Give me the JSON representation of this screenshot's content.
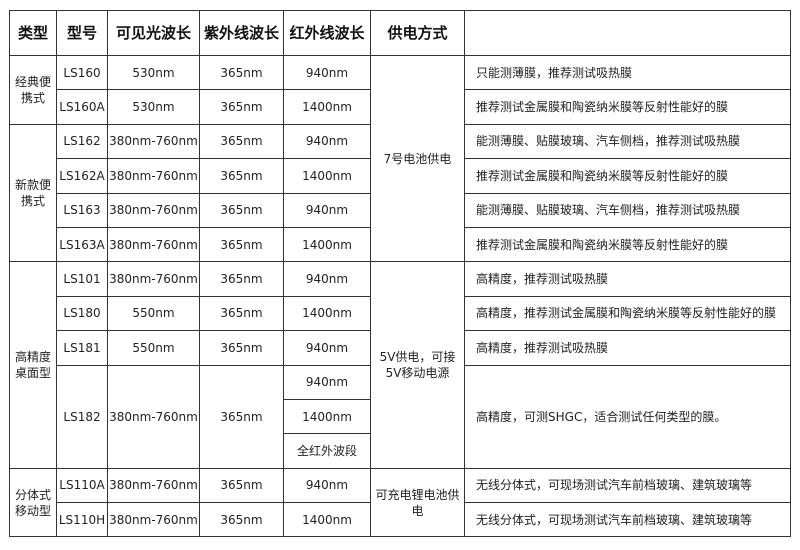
{
  "headers": [
    "类型",
    "型号",
    "可见光波长",
    "紫外线波长",
    "红外线波长",
    "供电方式",
    ""
  ],
  "types": [
    {
      "label": "经典便携式",
      "rows": 2
    },
    {
      "label": "新款便携式",
      "rows": 4
    },
    {
      "label": "高精度桌面型",
      "rows": 6
    },
    {
      "label": "分体式移动型",
      "rows": 2
    }
  ],
  "power": [
    {
      "label": "7号电池供电",
      "rows": 6
    },
    {
      "label": "5V供电，可接5V移动电源",
      "rows": 6
    },
    {
      "label": "可充电锂电池供电",
      "rows": 2
    }
  ],
  "models": [
    {
      "model": "LS160",
      "visible": "530nm",
      "uv": "365nm",
      "ir": [
        "940nm"
      ],
      "desc": "只能测薄膜，推荐测试吸热膜"
    },
    {
      "model": "LS160A",
      "visible": "530nm",
      "uv": "365nm",
      "ir": [
        "1400nm"
      ],
      "desc": "推荐测试金属膜和陶瓷纳米膜等反射性能好的膜"
    },
    {
      "model": "LS162",
      "visible": "380nm-760nm",
      "uv": "365nm",
      "ir": [
        "940nm"
      ],
      "desc": "能测薄膜、贴膜玻璃、汽车侧档，推荐测试吸热膜"
    },
    {
      "model": "LS162A",
      "visible": "380nm-760nm",
      "uv": "365nm",
      "ir": [
        "1400nm"
      ],
      "desc": "推荐测试金属膜和陶瓷纳米膜等反射性能好的膜"
    },
    {
      "model": "LS163",
      "visible": "380nm-760nm",
      "uv": "365nm",
      "ir": [
        "940nm"
      ],
      "desc": "能测薄膜、贴膜玻璃、汽车侧档，推荐测试吸热膜"
    },
    {
      "model": "LS163A",
      "visible": "380nm-760nm",
      "uv": "365nm",
      "ir": [
        "1400nm"
      ],
      "desc": "推荐测试金属膜和陶瓷纳米膜等反射性能好的膜"
    },
    {
      "model": "LS101",
      "visible": "380nm-760nm",
      "uv": "365nm",
      "ir": [
        "940nm"
      ],
      "desc": "高精度，推荐测试吸热膜"
    },
    {
      "model": "LS180",
      "visible": "550nm",
      "uv": "365nm",
      "ir": [
        "1400nm"
      ],
      "desc": "高精度，推荐测试金属膜和陶瓷纳米膜等反射性能好的膜"
    },
    {
      "model": "LS181",
      "visible": "550nm",
      "uv": "365nm",
      "ir": [
        "940nm"
      ],
      "desc": "高精度，推荐测试吸热膜"
    },
    {
      "model": "LS182",
      "visible": "380nm-760nm",
      "uv": "365nm",
      "ir": [
        "940nm",
        "1400nm",
        "全红外波段"
      ],
      "desc": "高精度，可测SHGC，适合测试任何类型的膜。"
    },
    {
      "model": "LS110A",
      "visible": "380nm-760nm",
      "uv": "365nm",
      "ir": [
        "940nm"
      ],
      "desc": "无线分体式，可现场测试汽车前档玻璃、建筑玻璃等"
    },
    {
      "model": "LS110H",
      "visible": "380nm-760nm",
      "uv": "365nm",
      "ir": [
        "1400nm"
      ],
      "desc": "无线分体式，可现场测试汽车前档玻璃、建筑玻璃等"
    }
  ]
}
